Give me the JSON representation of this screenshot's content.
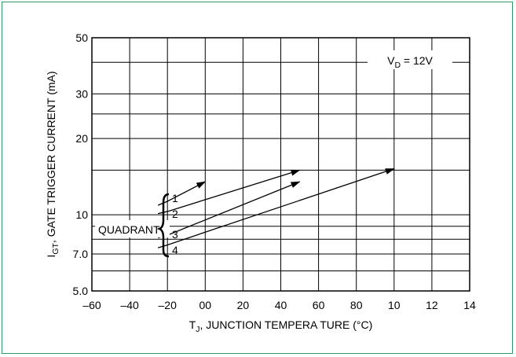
{
  "chart_data": {
    "type": "line",
    "title": "",
    "xlabel": "T_J, JUNCTION TEMPERA TURE (°C)",
    "ylabel": "I_GT, GATE TRIGGER CURRENT (mA)",
    "x_scale": "linear",
    "y_scale": "log",
    "xlim": [
      -60,
      140
    ],
    "ylim": [
      5.0,
      50
    ],
    "x_ticks": [
      "-60",
      "-40",
      "-20",
      "00",
      "20",
      "40",
      "60",
      "80",
      "10",
      "12",
      "14"
    ],
    "y_ticks": [
      "5.0",
      "7.0",
      "10",
      "20",
      "30",
      "50"
    ],
    "grid": true,
    "condition_label": "V_D = 12V",
    "group_label": "QUADRANT",
    "series": [
      {
        "name": "1",
        "x": [
          -25,
          -20,
          0
        ],
        "y": [
          10.9,
          11.3,
          13.5
        ]
      },
      {
        "name": "2",
        "x": [
          -25,
          -20,
          50
        ],
        "y": [
          10.1,
          10.3,
          15.0
        ]
      },
      {
        "name": "3",
        "x": [
          -25,
          -20,
          50
        ],
        "y": [
          8.1,
          8.3,
          13.5
        ]
      },
      {
        "name": "4",
        "x": [
          -25,
          -20,
          100
        ],
        "y": [
          7.4,
          7.6,
          15.2
        ]
      }
    ]
  }
}
